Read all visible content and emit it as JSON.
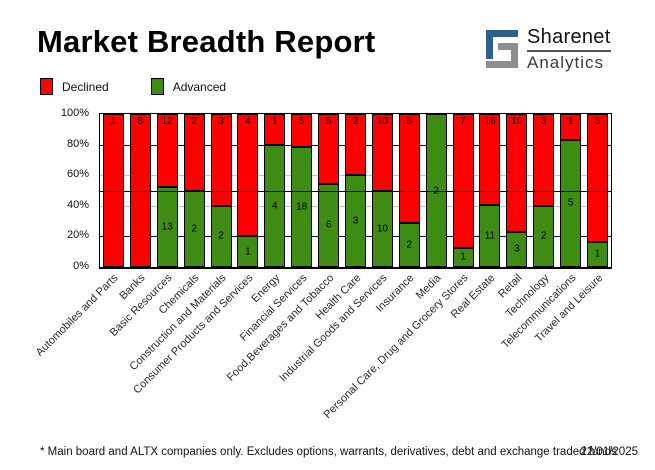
{
  "title": "Market Breadth Report",
  "logo": {
    "brand": "Sharenet",
    "sub": "Analytics",
    "blue": "#2e5f8c",
    "gray": "#8f8f8f"
  },
  "legend": [
    {
      "label": "Declined",
      "color": "#ff0000"
    },
    {
      "label": "Advanced",
      "color": "#3e8c14"
    }
  ],
  "footer": {
    "note": "* Main board and ALTX companies only. Excludes options, warrants, derivatives, debt and exchange traded funds",
    "date": "22/01/2025"
  },
  "chart_data": {
    "type": "bar",
    "stacked": true,
    "normalized": "percent",
    "title": "Market Breadth Report",
    "ylim": [
      0,
      100
    ],
    "yticks": [
      "0%",
      "20%",
      "40%",
      "60%",
      "80%",
      "100%"
    ],
    "series_colors": {
      "declined": "#ff0000",
      "advanced": "#3e8c14"
    },
    "gridlines": [
      {
        "value": 20,
        "color": "#000080"
      },
      {
        "value": 40,
        "color": "#c0c0c0"
      },
      {
        "value": 60,
        "color": "#c0c0c0"
      },
      {
        "value": 80,
        "color": "#000080"
      }
    ],
    "mid_line": {
      "value": 50,
      "color": "#000000"
    },
    "categories": [
      {
        "label": "Automobiles and Parts",
        "declined": 1,
        "advanced": 0
      },
      {
        "label": "Banks",
        "declined": 8,
        "advanced": 0
      },
      {
        "label": "Basic Resources",
        "declined": 12,
        "advanced": 13
      },
      {
        "label": "Chemicals",
        "declined": 2,
        "advanced": 2
      },
      {
        "label": "Construction and Materials",
        "declined": 3,
        "advanced": 2
      },
      {
        "label": "Consumer Products and Services",
        "declined": 4,
        "advanced": 1
      },
      {
        "label": "Energy",
        "declined": 1,
        "advanced": 4
      },
      {
        "label": "Financial Services",
        "declined": 5,
        "advanced": 18
      },
      {
        "label": "Food,Beverages and Tobacco",
        "declined": 5,
        "advanced": 6
      },
      {
        "label": "Health Care",
        "declined": 2,
        "advanced": 3
      },
      {
        "label": "Industrial Goods and Services",
        "declined": 10,
        "advanced": 10
      },
      {
        "label": "Insurance",
        "declined": 5,
        "advanced": 2
      },
      {
        "label": "Media",
        "declined": 0,
        "advanced": 2
      },
      {
        "label": "Personal Care, Drug and Grocery Stores",
        "declined": 7,
        "advanced": 1
      },
      {
        "label": "Real Estate",
        "declined": 16,
        "advanced": 11
      },
      {
        "label": "Retail",
        "declined": 10,
        "advanced": 3
      },
      {
        "label": "Technology",
        "declined": 3,
        "advanced": 2
      },
      {
        "label": "Telecommunications",
        "declined": 1,
        "advanced": 5
      },
      {
        "label": "Travel and Leisure",
        "declined": 5,
        "advanced": 1
      }
    ]
  }
}
